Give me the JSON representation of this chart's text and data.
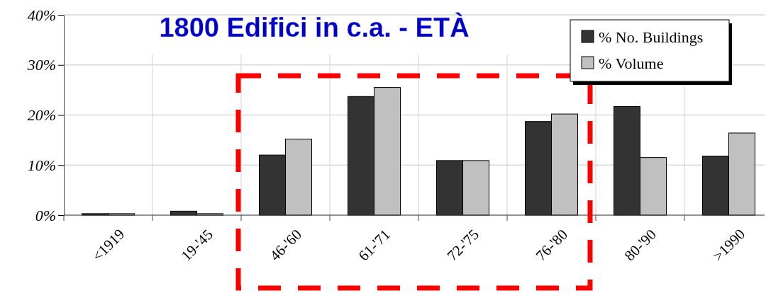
{
  "chart_data": {
    "type": "bar",
    "title": "1800 Edifici in c.a. - ETÀ",
    "categories": [
      "<1919",
      "19-'45",
      "46-'60",
      "61-'71",
      "72-'75",
      "76-'80",
      "80-'90",
      ">1990"
    ],
    "series": [
      {
        "name": "% No. Buildings",
        "color": "#333333",
        "values": [
          0.3,
          0.8,
          12.0,
          23.7,
          10.9,
          18.7,
          21.7,
          11.8
        ]
      },
      {
        "name": "% Volume",
        "color": "#c0c0c0",
        "values": [
          0.3,
          0.3,
          15.2,
          25.5,
          10.9,
          20.2,
          11.5,
          16.4
        ]
      }
    ],
    "ylim": [
      0,
      40
    ],
    "yticks": [
      {
        "value": 0,
        "label": "0%"
      },
      {
        "value": 10,
        "label": "10%"
      },
      {
        "value": 20,
        "label": "20%"
      },
      {
        "value": 30,
        "label": "30%"
      },
      {
        "value": 40,
        "label": "40%"
      }
    ],
    "grid": true,
    "legend": "top right"
  }
}
